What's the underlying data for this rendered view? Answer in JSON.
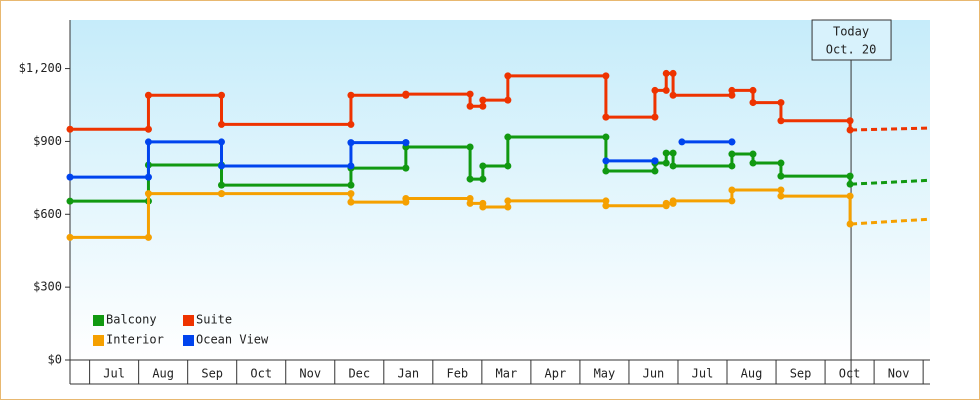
{
  "chart_data": {
    "type": "step-line",
    "categories": [
      "Jul",
      "Aug",
      "Sep",
      "Oct",
      "Nov",
      "Dec",
      "Jan",
      "Feb",
      "Mar",
      "Apr",
      "May",
      "Jun",
      "Jul",
      "Aug",
      "Sep",
      "Oct",
      "Nov"
    ],
    "xlim": [
      -0.4,
      17.14
    ],
    "ylim": [
      0,
      1400
    ],
    "yticks": [
      {
        "value": 0,
        "label": "$0"
      },
      {
        "value": 300,
        "label": "$300"
      },
      {
        "value": 600,
        "label": "$600"
      },
      {
        "value": 900,
        "label": "$900"
      },
      {
        "value": 1200,
        "label": "$1,200"
      }
    ],
    "annotation": {
      "lines": [
        "Today",
        "Oct. 20"
      ],
      "x": 15.53
    },
    "forecast_x": [
      15.53,
      17.14
    ],
    "series": [
      {
        "name": "Balcony",
        "color": "#119911",
        "x": [
          -0.4,
          1.2,
          2.69,
          5.33,
          6.45,
          7.76,
          8.02,
          8.53,
          10.53,
          11.53,
          11.76,
          11.9,
          13.1,
          13.53,
          14.1,
          15.51
        ],
        "values": [
          654,
          803,
          720,
          790,
          877,
          745,
          799,
          918,
          778,
          811,
          852,
          799,
          848,
          811,
          757,
          724
        ],
        "forecast": [
          724,
          740
        ]
      },
      {
        "name": "Suite",
        "color": "#ee3300",
        "x": [
          -0.4,
          1.2,
          2.69,
          5.33,
          6.45,
          7.76,
          8.02,
          8.53,
          10.53,
          11.53,
          11.76,
          11.9,
          13.1,
          13.53,
          14.1,
          15.51
        ],
        "values": [
          950,
          1090,
          970,
          1090,
          1095,
          1045,
          1070,
          1170,
          1000,
          1110,
          1180,
          1090,
          1110,
          1060,
          985,
          947
        ],
        "forecast": [
          947,
          955
        ]
      },
      {
        "name": "Interior",
        "color": "#f5a000",
        "x": [
          -0.4,
          1.2,
          2.69,
          5.33,
          6.45,
          7.76,
          8.02,
          8.53,
          10.53,
          11.76,
          11.9,
          13.1,
          14.1,
          15.51
        ],
        "values": [
          505,
          685,
          685,
          650,
          665,
          645,
          630,
          655,
          635,
          645,
          655,
          700,
          675,
          560
        ],
        "forecast": [
          560,
          580
        ]
      },
      {
        "name": "Ocean View",
        "color": "#0044ee",
        "x": [
          -0.4,
          1.2,
          2.69,
          5.33,
          6.45,
          8.0,
          10.53,
          11.53,
          11.7,
          12.08,
          13.1
        ],
        "values": [
          753,
          898,
          799,
          895,
          895,
          null,
          820,
          820,
          null,
          898,
          898
        ]
      }
    ]
  }
}
